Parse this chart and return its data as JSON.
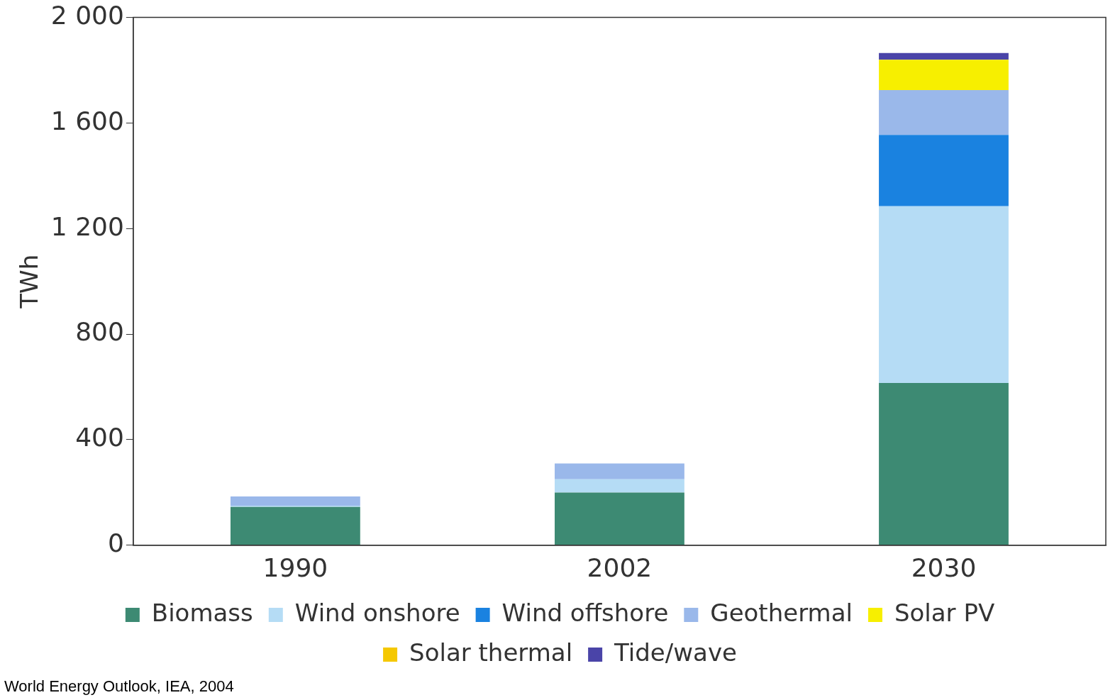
{
  "chart_data": {
    "type": "bar",
    "stacked": true,
    "ylabel": "TWh",
    "categories": [
      "1990",
      "2002",
      "2030"
    ],
    "series": [
      {
        "name": "Biomass",
        "color": "#3d8a73",
        "values": [
          145,
          200,
          615
        ]
      },
      {
        "name": "Wind onshore",
        "color": "#b5dcf5",
        "values": [
          5,
          50,
          670
        ]
      },
      {
        "name": "Wind offshore",
        "color": "#1a82e0",
        "values": [
          0,
          0,
          270
        ]
      },
      {
        "name": "Geothermal",
        "color": "#9ab8ea",
        "values": [
          35,
          60,
          170
        ]
      },
      {
        "name": "Solar PV",
        "color": "#f7ef00",
        "values": [
          0,
          0,
          115
        ]
      },
      {
        "name": "Solar thermal",
        "color": "#f5c800",
        "values": [
          0,
          0,
          0
        ]
      },
      {
        "name": "Tide/wave",
        "color": "#4a44a8",
        "values": [
          0,
          0,
          25
        ]
      }
    ],
    "ylim": [
      0,
      2000
    ],
    "yticks": [
      0,
      400,
      800,
      {
        "value": 1200,
        "label": "1 200"
      },
      {
        "value": 1600,
        "label": "1 600"
      },
      {
        "value": 2000,
        "label": "2 000"
      }
    ],
    "grid": false,
    "legend": "bottom",
    "annotations": [
      "World Energy Outlook, IEA, 2004"
    ]
  }
}
